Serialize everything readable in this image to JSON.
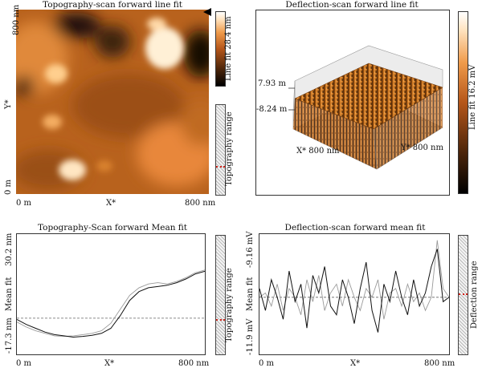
{
  "panels": {
    "topo_image": {
      "title": "Topography-scan forward line fit",
      "y_top": "800 nm",
      "y_axis": "Y*",
      "y_bottom": "0 m",
      "x_left": "0 m",
      "x_axis": "X*",
      "x_right": "800 nm",
      "colorbar_label": "Line fit 28.4 nm",
      "range_label": "Topography range"
    },
    "defl_3d": {
      "title": "Deflection-scan forward line fit",
      "z_top": "7.93 m",
      "z_bottom": "-8.24 m",
      "x_axis": "X* 800 nm",
      "y_axis": "Y* 800 nm",
      "colorbar_label": "Line fit 16.2 mV"
    },
    "topo_profile": {
      "title": "Topography-Scan forward Mean fit",
      "y_top": "30.2 nm",
      "y_label": "Mean fit",
      "y_bottom": "-17.3 nm",
      "x_left": "0 m",
      "x_axis": "X*",
      "x_right": "800 nm",
      "range_label": "Topography range"
    },
    "defl_profile": {
      "title": "Deflection-scan forward mean fit",
      "y_top": "-9.16 mV",
      "y_label": "Mean fit",
      "y_bottom": "-11.9 mV",
      "x_left": "0 m",
      "x_axis": "X*",
      "x_right": "800 nm",
      "range_label": "Deflection range"
    }
  },
  "colors": {
    "afm_dark": "#1a0d05",
    "afm_mid": "#c8671a",
    "afm_light": "#fff3d8",
    "series_main": "#111111",
    "series_secondary": "#9a9a9a",
    "reference": "#666666"
  },
  "chart_data": [
    {
      "type": "heatmap",
      "title": "Topography-scan forward line fit",
      "xlabel": "X*",
      "ylabel": "Y*",
      "xlim": [
        "0 m",
        "800 nm"
      ],
      "ylim": [
        "0 m",
        "800 nm"
      ],
      "colorbar": "Line fit 28.4 nm"
    },
    {
      "type": "area",
      "title": "Deflection-scan forward line fit",
      "xlabel": "X* 800 nm",
      "ylabel": "Y* 800 nm",
      "zlim": [
        "-8.24 m",
        "7.93 m"
      ],
      "colorbar": "Line fit 16.2 mV"
    },
    {
      "type": "line",
      "title": "Topography-Scan forward Mean fit",
      "xlabel": "X*",
      "ylabel": "Mean fit",
      "xlim": [
        0,
        800
      ],
      "ylim": [
        -17.3,
        30.2
      ],
      "x": [
        0,
        40,
        80,
        120,
        160,
        200,
        240,
        280,
        320,
        360,
        400,
        440,
        480,
        520,
        560,
        600,
        640,
        680,
        720,
        760,
        800
      ],
      "reference_y": -3.0,
      "series": [
        {
          "values": [
            -3.5,
            -5.5,
            -7.0,
            -8.5,
            -9.5,
            -10.0,
            -10.5,
            -10.2,
            -9.8,
            -9.0,
            -7.0,
            -2.0,
            4.0,
            7.5,
            9.0,
            9.5,
            10.0,
            11.0,
            12.5,
            14.5,
            15.5
          ]
        },
        {
          "values": [
            -4.5,
            -6.5,
            -8.0,
            -9.0,
            -10.0,
            -10.2,
            -10.0,
            -9.5,
            -9.0,
            -8.0,
            -5.0,
            0.5,
            6.0,
            9.0,
            10.5,
            11.0,
            10.5,
            11.5,
            13.0,
            15.0,
            16.0
          ]
        }
      ]
    },
    {
      "type": "line",
      "title": "Deflection-scan forward mean fit",
      "xlabel": "X*",
      "ylabel": "Mean fit",
      "xlim": [
        0,
        800
      ],
      "ylim": [
        -11.9,
        -9.16
      ],
      "x": [
        0,
        25,
        50,
        75,
        100,
        125,
        150,
        175,
        200,
        225,
        250,
        275,
        300,
        325,
        350,
        375,
        400,
        425,
        450,
        475,
        500,
        525,
        550,
        575,
        600,
        625,
        650,
        675,
        700,
        725,
        750,
        775,
        800
      ],
      "reference_y": -10.6,
      "series": [
        {
          "values": [
            -10.4,
            -10.9,
            -10.2,
            -10.6,
            -11.1,
            -10.0,
            -10.7,
            -10.3,
            -11.3,
            -10.1,
            -10.5,
            -9.9,
            -10.8,
            -11.0,
            -10.2,
            -10.6,
            -11.2,
            -10.4,
            -9.8,
            -10.9,
            -11.4,
            -10.3,
            -10.7,
            -10.0,
            -10.6,
            -11.0,
            -10.2,
            -10.8,
            -10.5,
            -9.9,
            -9.5,
            -10.7,
            -10.6
          ]
        },
        {
          "values": [
            -10.6,
            -10.5,
            -10.8,
            -10.3,
            -10.9,
            -10.4,
            -10.6,
            -11.0,
            -10.2,
            -10.7,
            -10.1,
            -10.9,
            -10.5,
            -10.3,
            -10.8,
            -10.2,
            -10.6,
            -10.9,
            -10.4,
            -10.6,
            -10.2,
            -11.1,
            -10.5,
            -10.4,
            -10.8,
            -10.3,
            -10.7,
            -10.5,
            -10.9,
            -10.6,
            -9.3,
            -10.4,
            -10.6
          ]
        }
      ]
    }
  ]
}
